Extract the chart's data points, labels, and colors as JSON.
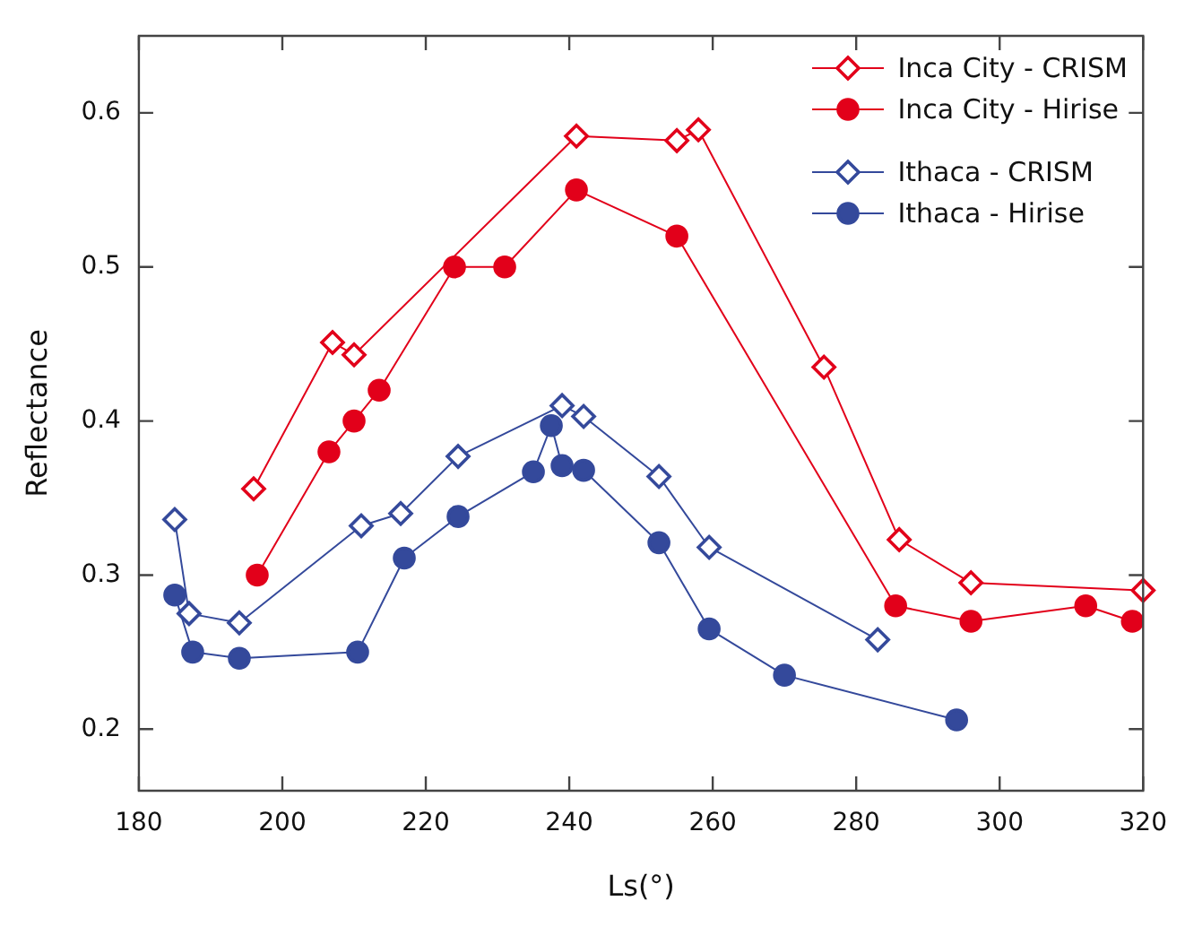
{
  "chart_data": {
    "type": "line",
    "xlabel": "Ls(°)",
    "ylabel": "Reflectance",
    "xlim": [
      180,
      320
    ],
    "xticks": [
      180,
      200,
      220,
      240,
      260,
      280,
      300,
      320
    ],
    "ylim": [
      0.16,
      0.65
    ],
    "yticks": [
      0.2,
      0.3,
      0.4,
      0.5,
      0.6
    ],
    "grid": false,
    "legend": "top right",
    "series": [
      {
        "name": "Inca City - CRISM",
        "color": "#e2001a",
        "marker": "diamond",
        "x": [
          196,
          207,
          210,
          241,
          255,
          258,
          275.5,
          286,
          296,
          320
        ],
        "values": [
          0.356,
          0.451,
          0.443,
          0.585,
          0.582,
          0.589,
          0.435,
          0.323,
          0.295,
          0.29
        ]
      },
      {
        "name": "Inca City - Hirise",
        "color": "#e2001a",
        "marker": "circle",
        "x": [
          196.5,
          206.5,
          210,
          213.5,
          224,
          231,
          241,
          255,
          285.5,
          296,
          312,
          318.5
        ],
        "values": [
          0.3,
          0.38,
          0.4,
          0.42,
          0.5,
          0.5,
          0.55,
          0.52,
          0.28,
          0.27,
          0.28,
          0.27
        ]
      },
      {
        "name": "Ithaca - CRISM",
        "color": "#34499b",
        "marker": "diamond",
        "x": [
          185,
          187,
          194,
          211,
          216.5,
          224.5,
          239,
          242,
          252.5,
          259.5,
          283
        ],
        "values": [
          0.336,
          0.275,
          0.269,
          0.332,
          0.34,
          0.377,
          0.41,
          0.403,
          0.364,
          0.318,
          0.258
        ]
      },
      {
        "name": "Ithaca - Hirise",
        "color": "#34499b",
        "marker": "circle",
        "x": [
          185,
          187.5,
          194,
          210.5,
          217,
          224.5,
          235,
          237.5,
          239,
          242,
          252.5,
          259.5,
          270,
          294
        ],
        "values": [
          0.287,
          0.25,
          0.246,
          0.25,
          0.311,
          0.338,
          0.367,
          0.397,
          0.371,
          0.368,
          0.321,
          0.265,
          0.235,
          0.206
        ]
      }
    ]
  }
}
